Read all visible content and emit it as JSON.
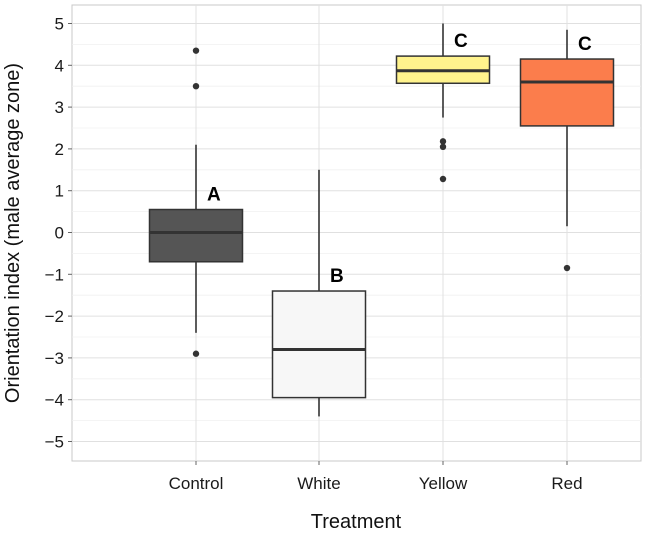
{
  "chart_data": {
    "type": "box",
    "xlabel": "Treatment",
    "ylabel": "Orientation index (male average zone)",
    "ylim": [
      -5.5,
      5.5
    ],
    "yticks": [
      5,
      4,
      3,
      2,
      1,
      0,
      -1,
      -2,
      -3,
      -4,
      -5
    ],
    "ytick_labels": [
      "5",
      "4",
      "3",
      "2",
      "1",
      "0",
      "−1",
      "−2",
      "−3",
      "−4",
      "−5"
    ],
    "grid": true,
    "categories": [
      "Control",
      "White",
      "Yellow",
      "Red"
    ],
    "boxes": [
      {
        "category": "Control",
        "q1": -0.7,
        "median": 0.0,
        "q3": 0.55,
        "whisker_low": -2.4,
        "whisker_high": 2.1,
        "outliers": [
          4.35,
          3.5,
          -2.9
        ],
        "fill": "#555555",
        "letter": "A"
      },
      {
        "category": "White",
        "q1": -3.95,
        "median": -2.8,
        "q3": -1.4,
        "whisker_low": -4.4,
        "whisker_high": 1.5,
        "outliers": [],
        "fill": "#f7f7f7",
        "letter": "B"
      },
      {
        "category": "Yellow",
        "q1": 3.57,
        "median": 3.87,
        "q3": 4.22,
        "whisker_low": 2.75,
        "whisker_high": 5.0,
        "outliers": [
          2.18,
          2.05,
          1.28
        ],
        "fill": "#fff38d",
        "letter": "C"
      },
      {
        "category": "Red",
        "q1": 2.55,
        "median": 3.6,
        "q3": 4.15,
        "whisker_low": 0.15,
        "whisker_high": 4.85,
        "outliers": [
          -0.85
        ],
        "fill": "#fb7d4c",
        "letter": "C"
      }
    ]
  }
}
